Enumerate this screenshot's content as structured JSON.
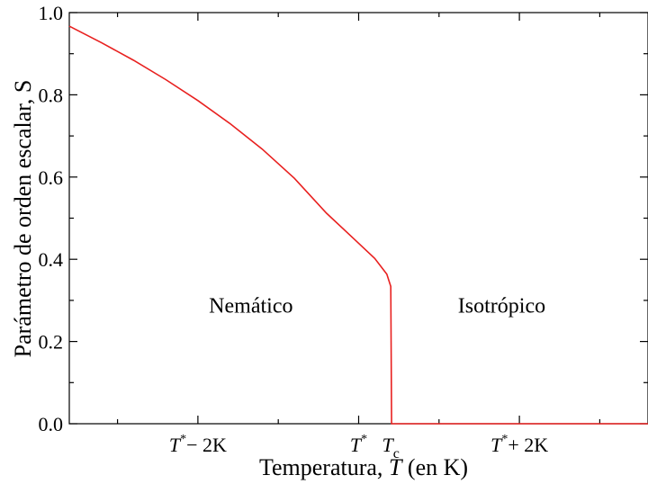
{
  "chart_data": {
    "type": "line",
    "xlabel": "Temperatura, T (en K)",
    "ylabel": "Parámetro de orden escalar, S",
    "xlim": [
      -3.6,
      3.6
    ],
    "ylim": [
      0.0,
      1.0
    ],
    "yticks": [
      "0.0",
      "0.2",
      "0.4",
      "0.6",
      "0.8",
      "1.0"
    ],
    "xticks": [
      {
        "x": -2.0,
        "main": "T",
        "sup": "*",
        "rest": "− 2K"
      },
      {
        "x": 0.0,
        "main": "T",
        "sup": "*",
        "rest": ""
      },
      {
        "x": 0.4,
        "main": "T",
        "sub": "c",
        "rest": ""
      },
      {
        "x": 2.0,
        "main": "T",
        "sup": "*",
        "rest": "+ 2K"
      }
    ],
    "regions": [
      {
        "label": "Nemático",
        "x": -1.34,
        "y": 0.27
      },
      {
        "label": "Isotrópico",
        "x": 1.78,
        "y": 0.27
      }
    ],
    "series": [
      {
        "color": "#e8201f",
        "x": [
          -3.6,
          -3.2,
          -2.8,
          -2.4,
          -2.0,
          -1.6,
          -1.2,
          -0.8,
          -0.4,
          0.0,
          0.2,
          0.35,
          0.4,
          0.41,
          0.43,
          3.6
        ],
        "y": [
          0.967,
          0.927,
          0.884,
          0.837,
          0.786,
          0.73,
          0.668,
          0.597,
          0.512,
          0.439,
          0.402,
          0.364,
          0.334,
          0.0,
          0.0,
          0.0
        ]
      }
    ]
  }
}
